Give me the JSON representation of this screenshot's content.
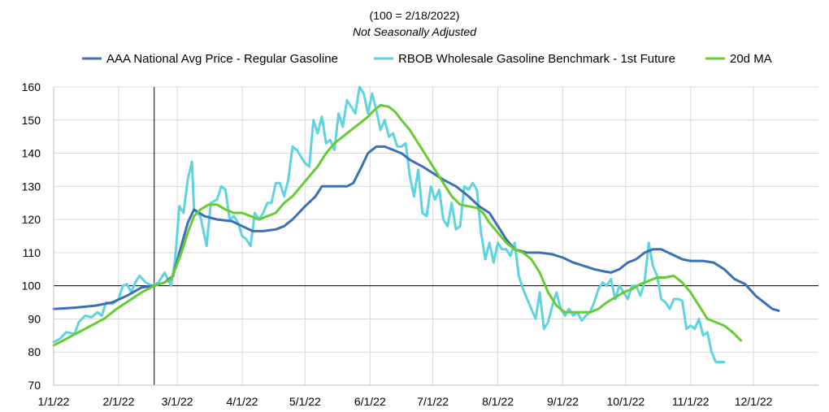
{
  "chart_data": {
    "type": "line",
    "title": "(100 = 2/18/2022)",
    "subtitle": "Not Seasonally Adjusted",
    "xlabel": "",
    "ylabel": "",
    "ylim": [
      70,
      160
    ],
    "yticks": [
      70,
      80,
      90,
      100,
      110,
      120,
      130,
      140,
      150,
      160
    ],
    "xlim": [
      0,
      365
    ],
    "xticks": [
      {
        "label": "1/1/22",
        "day": 0
      },
      {
        "label": "2/1/22",
        "day": 31
      },
      {
        "label": "3/1/22",
        "day": 59
      },
      {
        "label": "4/1/22",
        "day": 90
      },
      {
        "label": "5/1/22",
        "day": 120
      },
      {
        "label": "6/1/22",
        "day": 151
      },
      {
        "label": "7/1/22",
        "day": 181
      },
      {
        "label": "8/1/22",
        "day": 212
      },
      {
        "label": "9/1/22",
        "day": 243
      },
      {
        "label": "10/1/22",
        "day": 273
      },
      {
        "label": "11/1/22",
        "day": 304
      },
      {
        "label": "12/1/22",
        "day": 334
      }
    ],
    "reference_lines": {
      "horizontal_y": 100,
      "vertical_day": 48
    },
    "grid": "horizontal and vertical",
    "legend_position": "top",
    "series": [
      {
        "name": "AAA National Avg Price - Regular Gasoline",
        "color": "#3a70b8",
        "points": [
          [
            0,
            93
          ],
          [
            10,
            93.4
          ],
          [
            20,
            94
          ],
          [
            28,
            95
          ],
          [
            35,
            97
          ],
          [
            42,
            99.5
          ],
          [
            48,
            100
          ],
          [
            53,
            101
          ],
          [
            57,
            103
          ],
          [
            60,
            110
          ],
          [
            64,
            119
          ],
          [
            67,
            123
          ],
          [
            72,
            121
          ],
          [
            78,
            120
          ],
          [
            85,
            119.5
          ],
          [
            90,
            118
          ],
          [
            95,
            116.5
          ],
          [
            100,
            116.5
          ],
          [
            106,
            117
          ],
          [
            110,
            118
          ],
          [
            114,
            120
          ],
          [
            120,
            124
          ],
          [
            125,
            127
          ],
          [
            128,
            130
          ],
          [
            135,
            130
          ],
          [
            140,
            130
          ],
          [
            143,
            131
          ],
          [
            147,
            136
          ],
          [
            150,
            140
          ],
          [
            154,
            142
          ],
          [
            158,
            142
          ],
          [
            162,
            141
          ],
          [
            166,
            140
          ],
          [
            170,
            138
          ],
          [
            176,
            136
          ],
          [
            181,
            134
          ],
          [
            186,
            132
          ],
          [
            192,
            130
          ],
          [
            198,
            127
          ],
          [
            203,
            124
          ],
          [
            208,
            122
          ],
          [
            212,
            118
          ],
          [
            216,
            114
          ],
          [
            220,
            111
          ],
          [
            226,
            110
          ],
          [
            232,
            110
          ],
          [
            238,
            109.5
          ],
          [
            243,
            108.5
          ],
          [
            248,
            107
          ],
          [
            253,
            106
          ],
          [
            258,
            105
          ],
          [
            263,
            104.3
          ],
          [
            266,
            104
          ],
          [
            270,
            105
          ],
          [
            274,
            107
          ],
          [
            278,
            108
          ],
          [
            282,
            110
          ],
          [
            286,
            111
          ],
          [
            290,
            111
          ],
          [
            295,
            109.5
          ],
          [
            300,
            108
          ],
          [
            304,
            107.5
          ],
          [
            310,
            107.5
          ],
          [
            315,
            107
          ],
          [
            320,
            105
          ],
          [
            325,
            102
          ],
          [
            330,
            100.5
          ],
          [
            335,
            97
          ],
          [
            339,
            95
          ],
          [
            343,
            93
          ],
          [
            346,
            92.5
          ]
        ]
      },
      {
        "name": "RBOB Wholesale Gasoline Benchmark - 1st Future",
        "color": "#5fd3e0",
        "points": [
          [
            0,
            83
          ],
          [
            3,
            84
          ],
          [
            6,
            86
          ],
          [
            10,
            85.5
          ],
          [
            12,
            89
          ],
          [
            15,
            91
          ],
          [
            18,
            90.5
          ],
          [
            21,
            92
          ],
          [
            23,
            91
          ],
          [
            25,
            95
          ],
          [
            28,
            94.5
          ],
          [
            31,
            96
          ],
          [
            33,
            100
          ],
          [
            35,
            100.5
          ],
          [
            37,
            98
          ],
          [
            39,
            101
          ],
          [
            41,
            103
          ],
          [
            44,
            101
          ],
          [
            47,
            100
          ],
          [
            50,
            101
          ],
          [
            53,
            104
          ],
          [
            56,
            100
          ],
          [
            58,
            108
          ],
          [
            60,
            124
          ],
          [
            62,
            122
          ],
          [
            64,
            132
          ],
          [
            66,
            137.5
          ],
          [
            67,
            123
          ],
          [
            70,
            121
          ],
          [
            73,
            112
          ],
          [
            75,
            125
          ],
          [
            78,
            126
          ],
          [
            80,
            130
          ],
          [
            82,
            129
          ],
          [
            84,
            120
          ],
          [
            86,
            121
          ],
          [
            88,
            119
          ],
          [
            90,
            115
          ],
          [
            92,
            114
          ],
          [
            94,
            112
          ],
          [
            96,
            122
          ],
          [
            98,
            120
          ],
          [
            100,
            122
          ],
          [
            102,
            125
          ],
          [
            104,
            125
          ],
          [
            106,
            131
          ],
          [
            108,
            131
          ],
          [
            110,
            127
          ],
          [
            112,
            132
          ],
          [
            114,
            142
          ],
          [
            116,
            141
          ],
          [
            118,
            139
          ],
          [
            120,
            137
          ],
          [
            122,
            136
          ],
          [
            124,
            150
          ],
          [
            126,
            146
          ],
          [
            128,
            151
          ],
          [
            130,
            143
          ],
          [
            132,
            144
          ],
          [
            134,
            141
          ],
          [
            136,
            152
          ],
          [
            138,
            148
          ],
          [
            140,
            156
          ],
          [
            142,
            154
          ],
          [
            144,
            152
          ],
          [
            146,
            160
          ],
          [
            148,
            158
          ],
          [
            150,
            152
          ],
          [
            152,
            158
          ],
          [
            154,
            153
          ],
          [
            156,
            147
          ],
          [
            158,
            150
          ],
          [
            160,
            145
          ],
          [
            162,
            146
          ],
          [
            164,
            142
          ],
          [
            166,
            142
          ],
          [
            168,
            143
          ],
          [
            170,
            133
          ],
          [
            172,
            127
          ],
          [
            174,
            135
          ],
          [
            176,
            122
          ],
          [
            178,
            121
          ],
          [
            180,
            130
          ],
          [
            182,
            126
          ],
          [
            184,
            129
          ],
          [
            186,
            120
          ],
          [
            188,
            118
          ],
          [
            190,
            125
          ],
          [
            192,
            117
          ],
          [
            194,
            118
          ],
          [
            196,
            130
          ],
          [
            198,
            129
          ],
          [
            200,
            131
          ],
          [
            202,
            129
          ],
          [
            204,
            116
          ],
          [
            206,
            108
          ],
          [
            208,
            113
          ],
          [
            210,
            107
          ],
          [
            212,
            113
          ],
          [
            214,
            111
          ],
          [
            216,
            111
          ],
          [
            218,
            109
          ],
          [
            220,
            113
          ],
          [
            222,
            103
          ],
          [
            224,
            99
          ],
          [
            226,
            96
          ],
          [
            228,
            93
          ],
          [
            230,
            90
          ],
          [
            232,
            98
          ],
          [
            234,
            87
          ],
          [
            236,
            89
          ],
          [
            238,
            94
          ],
          [
            240,
            98
          ],
          [
            242,
            93
          ],
          [
            244,
            91
          ],
          [
            246,
            93
          ],
          [
            248,
            91
          ],
          [
            250,
            92
          ],
          [
            252,
            89.5
          ],
          [
            254,
            91
          ],
          [
            256,
            92
          ],
          [
            258,
            95
          ],
          [
            260,
            99
          ],
          [
            262,
            101
          ],
          [
            264,
            100
          ],
          [
            266,
            102
          ],
          [
            268,
            96
          ],
          [
            270,
            100
          ],
          [
            272,
            98
          ],
          [
            274,
            96
          ],
          [
            276,
            100
          ],
          [
            278,
            100
          ],
          [
            280,
            97
          ],
          [
            282,
            101
          ],
          [
            284,
            113
          ],
          [
            286,
            106
          ],
          [
            288,
            103
          ],
          [
            290,
            96
          ],
          [
            292,
            95
          ],
          [
            294,
            93
          ],
          [
            296,
            96
          ],
          [
            298,
            96
          ],
          [
            300,
            95.5
          ],
          [
            302,
            87
          ],
          [
            304,
            88
          ],
          [
            306,
            87
          ],
          [
            308,
            90
          ],
          [
            310,
            85
          ],
          [
            312,
            86
          ],
          [
            314,
            80
          ],
          [
            316,
            77
          ],
          [
            318,
            77
          ],
          [
            320,
            77
          ]
        ]
      },
      {
        "name": "20d MA",
        "color": "#66cc33",
        "points": [
          [
            0,
            82
          ],
          [
            6,
            84
          ],
          [
            12,
            86
          ],
          [
            18,
            88
          ],
          [
            24,
            90
          ],
          [
            30,
            93
          ],
          [
            36,
            95.5
          ],
          [
            42,
            98
          ],
          [
            48,
            100
          ],
          [
            53,
            101
          ],
          [
            56,
            102
          ],
          [
            58,
            105
          ],
          [
            61,
            110
          ],
          [
            64,
            116
          ],
          [
            67,
            121
          ],
          [
            70,
            123
          ],
          [
            74,
            124.5
          ],
          [
            78,
            124.5
          ],
          [
            82,
            123
          ],
          [
            86,
            122
          ],
          [
            90,
            122
          ],
          [
            94,
            121
          ],
          [
            98,
            120
          ],
          [
            102,
            121
          ],
          [
            106,
            122
          ],
          [
            110,
            125
          ],
          [
            114,
            127
          ],
          [
            118,
            130
          ],
          [
            122,
            133
          ],
          [
            126,
            136
          ],
          [
            130,
            140
          ],
          [
            134,
            143
          ],
          [
            138,
            145
          ],
          [
            142,
            147
          ],
          [
            146,
            149
          ],
          [
            150,
            151
          ],
          [
            153,
            153
          ],
          [
            156,
            154.5
          ],
          [
            160,
            154
          ],
          [
            163,
            152.5
          ],
          [
            166,
            150
          ],
          [
            170,
            147
          ],
          [
            174,
            143
          ],
          [
            178,
            139
          ],
          [
            182,
            135
          ],
          [
            186,
            131
          ],
          [
            190,
            127
          ],
          [
            194,
            124.5
          ],
          [
            198,
            124
          ],
          [
            202,
            123.5
          ],
          [
            205,
            122
          ],
          [
            208,
            119
          ],
          [
            212,
            116
          ],
          [
            216,
            113
          ],
          [
            220,
            111
          ],
          [
            224,
            110
          ],
          [
            228,
            108
          ],
          [
            232,
            104
          ],
          [
            236,
            98
          ],
          [
            240,
            94
          ],
          [
            244,
            92
          ],
          [
            248,
            92
          ],
          [
            252,
            92
          ],
          [
            256,
            92
          ],
          [
            260,
            93
          ],
          [
            264,
            95
          ],
          [
            268,
            96.5
          ],
          [
            272,
            98
          ],
          [
            276,
            99
          ],
          [
            280,
            100.5
          ],
          [
            284,
            101.5
          ],
          [
            288,
            102.5
          ],
          [
            292,
            102.5
          ],
          [
            296,
            103
          ],
          [
            300,
            101
          ],
          [
            304,
            98
          ],
          [
            308,
            94
          ],
          [
            312,
            90
          ],
          [
            316,
            89
          ],
          [
            320,
            88
          ],
          [
            324,
            86
          ],
          [
            328,
            83.5
          ]
        ]
      }
    ]
  }
}
